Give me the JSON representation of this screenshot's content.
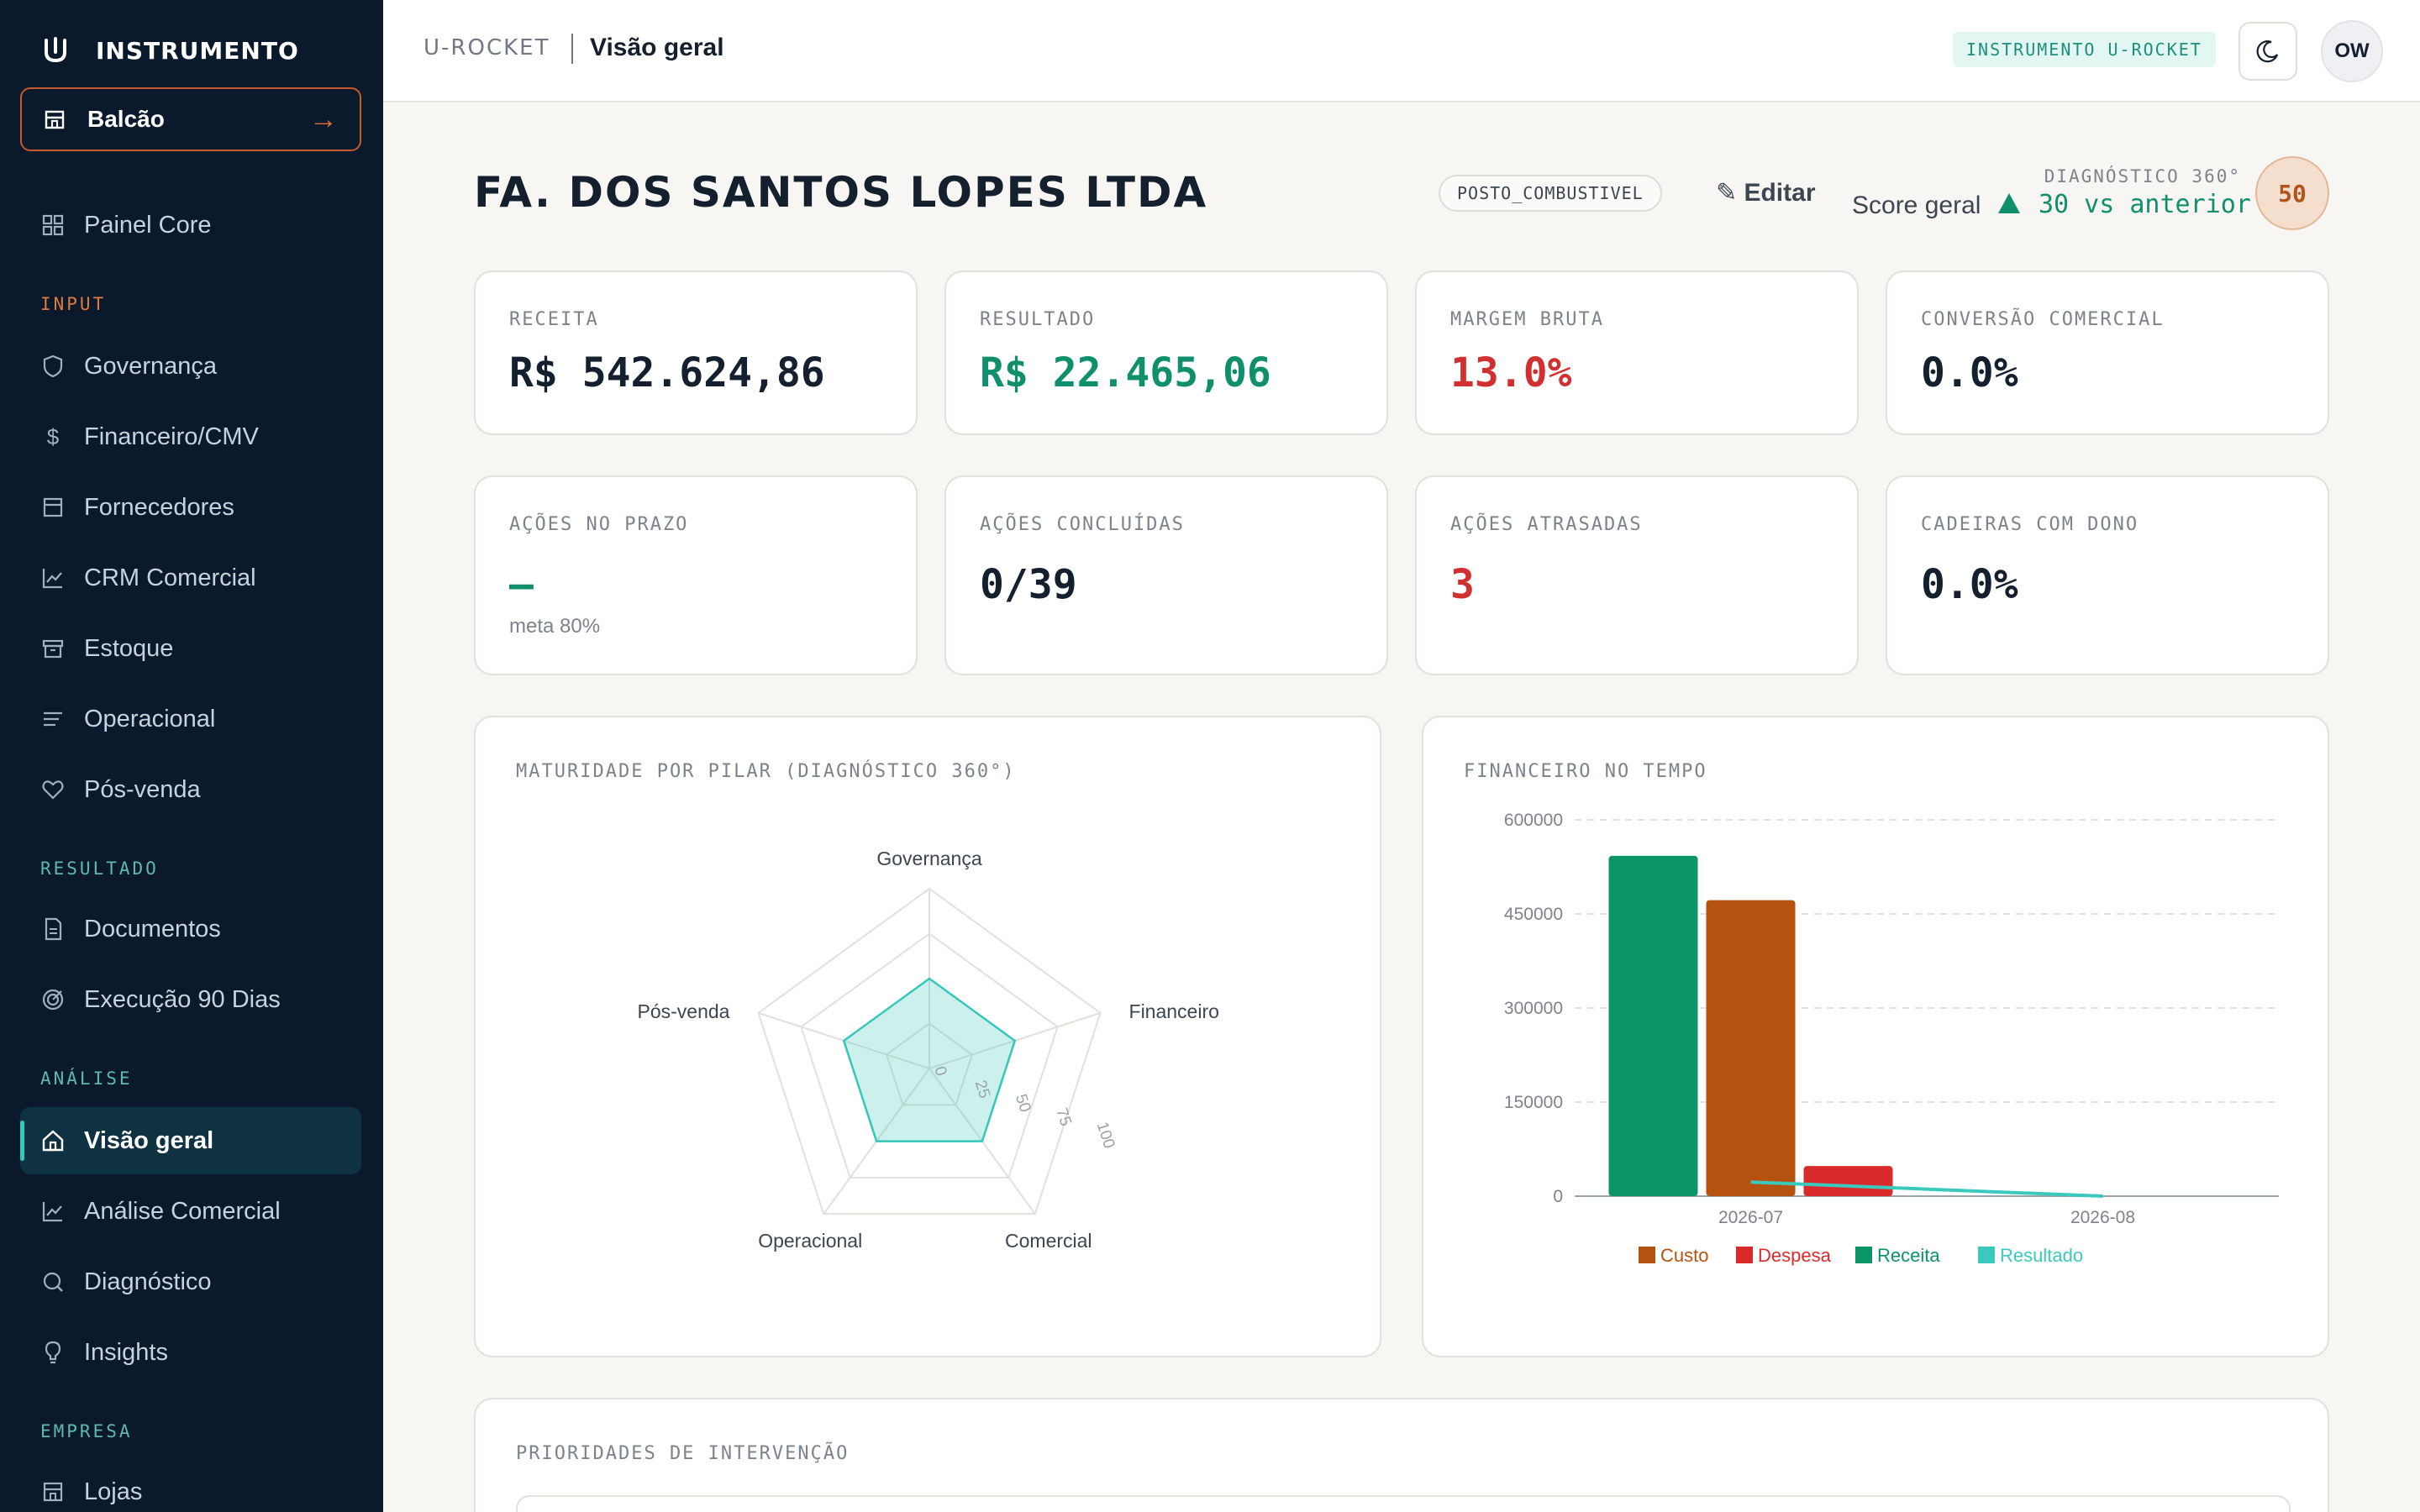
{
  "brand": {
    "name": "INSTRUMENTO"
  },
  "sidebar": {
    "balcao": "Balcão",
    "balcao_arrow": "→",
    "core": "Painel Core",
    "sections": {
      "input": {
        "label": "INPUT",
        "items": [
          "Governança",
          "Financeiro/CMV",
          "Fornecedores",
          "CRM Comercial",
          "Estoque",
          "Operacional",
          "Pós-venda"
        ]
      },
      "resultado": {
        "label": "RESULTADO",
        "items": [
          "Documentos",
          "Execução 90 Dias"
        ]
      },
      "analise": {
        "label": "ANÁLISE",
        "items": [
          "Visão geral",
          "Análise Comercial",
          "Diagnóstico",
          "Insights"
        ]
      },
      "empresa": {
        "label": "EMPRESA",
        "items": [
          "Lojas"
        ]
      }
    },
    "active": "Visão geral"
  },
  "header": {
    "root": "U-ROCKET",
    "page": "Visão geral",
    "badge": "INSTRUMENTO U-ROCKET",
    "avatar": "OW"
  },
  "company": {
    "name": "FA. DOS SANTOS LOPES LTDA",
    "segment": "POSTO_COMBUSTIVEL",
    "edit": "✎ Editar"
  },
  "score": {
    "diag_label": "DIAGNÓSTICO 360°",
    "label": "Score geral",
    "delta": "30 vs anterior",
    "value": "50"
  },
  "kpis_row1": [
    {
      "label": "RECEITA",
      "value": "R$ 542.624,86",
      "tone": "default"
    },
    {
      "label": "RESULTADO",
      "value": "R$ 22.465,06",
      "tone": "green"
    },
    {
      "label": "MARGEM BRUTA",
      "value": "13.0%",
      "tone": "red"
    },
    {
      "label": "CONVERSÃO COMERCIAL",
      "value": "0.0%",
      "tone": "default"
    }
  ],
  "kpis_row2": [
    {
      "label": "AÇÕES NO PRAZO",
      "value": "—",
      "sub": "meta 80%",
      "tone": "green"
    },
    {
      "label": "AÇÕES CONCLUÍDAS",
      "value": "0/39",
      "tone": "default"
    },
    {
      "label": "AÇÕES ATRASADAS",
      "value": "3",
      "tone": "red"
    },
    {
      "label": "CADEIRAS COM DONO",
      "value": "0.0%",
      "tone": "default"
    }
  ],
  "colors": {
    "teal": "#35c7b9",
    "green": "#0f8f6c",
    "red": "#d03030",
    "orange": "#b0541c",
    "sidebar_bg": "#0a1a2c",
    "section_label": "#e0793f",
    "section_label_alt": "#5fb8b0"
  },
  "chart_data": [
    {
      "type": "radar",
      "title": "MATURIDADE POR PILAR (DIAGNÓSTICO 360°)",
      "axes": [
        "Governança",
        "Financeiro",
        "Comercial",
        "Operacional",
        "Pós-venda"
      ],
      "values": [
        50,
        50,
        50,
        50,
        50
      ],
      "scale_ticks": [
        "0",
        "25",
        "50",
        "75",
        "100"
      ],
      "range": [
        0,
        100
      ]
    },
    {
      "type": "bar",
      "title": "FINANCEIRO NO TEMPO",
      "categories": [
        "2026-07",
        "2026-08"
      ],
      "y_ticks": [
        "600000",
        "450000",
        "300000",
        "150000",
        "0"
      ],
      "ylim": [
        0,
        600000
      ],
      "series": [
        {
          "name": "Receita",
          "type": "bar",
          "values": [
            542624.86,
            0
          ],
          "color": "#0a9467"
        },
        {
          "name": "Custo",
          "type": "bar",
          "values": [
            472000,
            0
          ],
          "color": "#b6520f"
        },
        {
          "name": "Despesa",
          "type": "bar",
          "values": [
            48000,
            0
          ],
          "color": "#d92b2b"
        },
        {
          "name": "Resultado",
          "type": "line",
          "values": [
            22465.06,
            0
          ],
          "color": "#3cc9bd"
        }
      ],
      "legend": [
        "Custo",
        "Despesa",
        "Receita",
        "Resultado"
      ],
      "legend_position": "bottom",
      "grid": true
    }
  ],
  "priorities": {
    "title": "PRIORIDADES DE INTERVENÇÃO"
  }
}
